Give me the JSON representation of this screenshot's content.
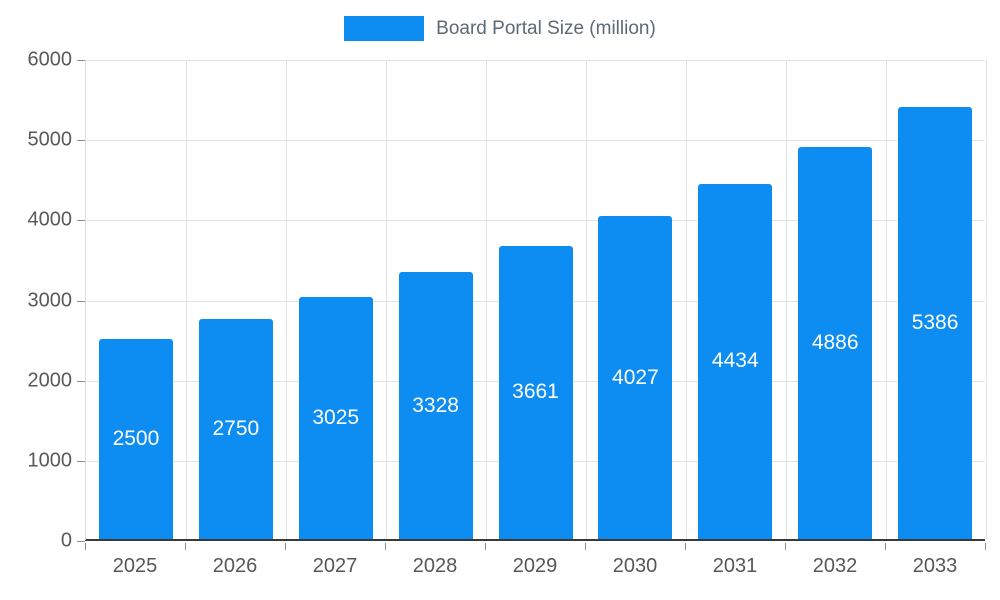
{
  "chart_data": {
    "type": "bar",
    "title": "",
    "legend": {
      "label": "Board Portal Size (million)",
      "position": "top"
    },
    "categories": [
      "2025",
      "2026",
      "2027",
      "2028",
      "2029",
      "2030",
      "2031",
      "2032",
      "2033"
    ],
    "series": [
      {
        "name": "Board Portal Size (million)",
        "color": "#0d8cf2",
        "values": [
          2500,
          2750,
          3025,
          3328,
          3661,
          4027,
          4434,
          4886,
          5386
        ]
      }
    ],
    "xlabel": "",
    "ylabel": "",
    "ylim": [
      0,
      6000
    ],
    "yticks": [
      0,
      1000,
      2000,
      3000,
      4000,
      5000,
      6000
    ],
    "grid": true,
    "bar_labels": "inside-center",
    "bar_label_color": "#ffffff"
  }
}
